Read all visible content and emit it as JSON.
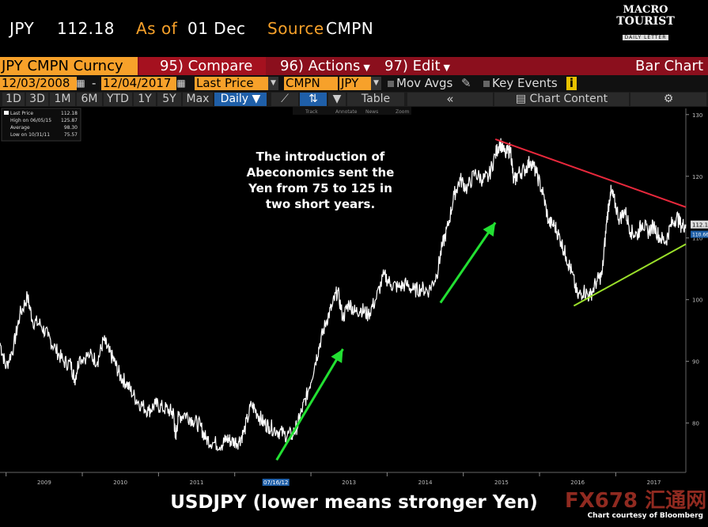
{
  "header": {
    "ticker": "JPY",
    "price": "112.18",
    "as_of_label": "As of",
    "as_of_date": "01 Dec",
    "source_label": "Source",
    "source_value": "CMPN"
  },
  "logo": {
    "line1": "MACRO",
    "line2": "TOURIST",
    "line3": "DAILY LETTER"
  },
  "menu": {
    "security": "JPY CMPN Curncy",
    "compare": "95) Compare",
    "actions": "96) Actions",
    "edit": "97) Edit",
    "bar_chart": "Bar Chart"
  },
  "inputs": {
    "start_date": "12/03/2008",
    "dash": "-",
    "end_date": "12/04/2017",
    "field": "Last Price",
    "source": "CMPN",
    "currency": "JPY",
    "mov_avgs": "Mov Avgs",
    "key_events": "Key Events",
    "info": "i"
  },
  "toolbar": {
    "periods": [
      "1D",
      "3D",
      "1M",
      "6M",
      "YTD",
      "1Y",
      "5Y",
      "Max"
    ],
    "frequency": "Daily ▼",
    "table": "Table",
    "chart_content": "Chart Content",
    "back": "«",
    "gear": "⚙",
    "tools": [
      "Track",
      "Annotate",
      "News",
      "Zoom"
    ]
  },
  "legend": {
    "rows": [
      {
        "label": "Last Price",
        "value": "112.18"
      },
      {
        "label": "High on 06/05/15",
        "value": "125.87"
      },
      {
        "label": "Average",
        "value": "98.30"
      },
      {
        "label": "Low on 10/31/11",
        "value": "75.57"
      }
    ]
  },
  "annotation": {
    "lines": [
      "The introduction of",
      "Abeconomics sent the",
      "Yen from 75 to 125 in",
      "two short years."
    ]
  },
  "footer": {
    "title": "USDJPY (lower means stronger Yen)",
    "credit": "Chart courtesy of Bloomberg",
    "watermark": "FX678 汇通网"
  },
  "colors": {
    "accent": "#f7a12a",
    "menubar": "#8b0f1d",
    "resistance": "#e8283c",
    "support": "#9adf2a",
    "arrows": "#22e032",
    "series": "#ffffff"
  },
  "chart_data": {
    "type": "line",
    "xlim": [
      2008.92,
      2017.92
    ],
    "ylim": [
      72,
      131
    ],
    "yticks": [
      80,
      90,
      100,
      110,
      120,
      130
    ],
    "xticks": [
      "2009",
      "2010",
      "2011",
      "2012",
      "2013",
      "2014",
      "2015",
      "2016",
      "2017"
    ],
    "xtick_positions": [
      2009.5,
      2010.5,
      2011.5,
      2012.5,
      2013.5,
      2014.5,
      2015.5,
      2016.5,
      2017.5
    ],
    "highlighted_date": "07/16/12",
    "highlighted_date_pos": 2012.54,
    "last_price_label": "112.18",
    "second_price_label": "110.66",
    "series": [
      {
        "name": "Last Price",
        "points": [
          [
            2008.92,
            93.0
          ],
          [
            2009.0,
            89.0
          ],
          [
            2009.1,
            92.5
          ],
          [
            2009.18,
            97.5
          ],
          [
            2009.28,
            100.5
          ],
          [
            2009.35,
            96.5
          ],
          [
            2009.45,
            96.0
          ],
          [
            2009.55,
            94.0
          ],
          [
            2009.65,
            92.0
          ],
          [
            2009.75,
            90.0
          ],
          [
            2009.85,
            89.5
          ],
          [
            2009.9,
            87.0
          ],
          [
            2009.96,
            90.5
          ],
          [
            2010.1,
            91.0
          ],
          [
            2010.2,
            90.0
          ],
          [
            2010.28,
            93.5
          ],
          [
            2010.35,
            91.5
          ],
          [
            2010.42,
            90.0
          ],
          [
            2010.5,
            87.5
          ],
          [
            2010.58,
            86.5
          ],
          [
            2010.67,
            84.5
          ],
          [
            2010.77,
            83.0
          ],
          [
            2010.87,
            82.0
          ],
          [
            2010.96,
            83.0
          ],
          [
            2011.05,
            82.5
          ],
          [
            2011.15,
            82.0
          ],
          [
            2011.2,
            81.5
          ],
          [
            2011.22,
            77.5
          ],
          [
            2011.26,
            81.0
          ],
          [
            2011.35,
            81.5
          ],
          [
            2011.45,
            80.5
          ],
          [
            2011.55,
            79.5
          ],
          [
            2011.62,
            77.5
          ],
          [
            2011.72,
            76.8
          ],
          [
            2011.83,
            76.5
          ],
          [
            2011.9,
            77.5
          ],
          [
            2011.96,
            77.0
          ],
          [
            2012.05,
            77.0
          ],
          [
            2012.12,
            78.5
          ],
          [
            2012.22,
            83.0
          ],
          [
            2012.3,
            81.5
          ],
          [
            2012.38,
            80.0
          ],
          [
            2012.45,
            79.5
          ],
          [
            2012.55,
            78.8
          ],
          [
            2012.65,
            78.2
          ],
          [
            2012.75,
            78.0
          ],
          [
            2012.82,
            79.5
          ],
          [
            2012.88,
            82.0
          ],
          [
            2012.96,
            85.0
          ],
          [
            2013.05,
            89.5
          ],
          [
            2013.12,
            93.0
          ],
          [
            2013.2,
            96.5
          ],
          [
            2013.28,
            99.0
          ],
          [
            2013.35,
            101.5
          ],
          [
            2013.42,
            97.0
          ],
          [
            2013.5,
            99.5
          ],
          [
            2013.58,
            98.0
          ],
          [
            2013.66,
            98.5
          ],
          [
            2013.75,
            97.5
          ],
          [
            2013.85,
            100.0
          ],
          [
            2013.96,
            104.0
          ],
          [
            2014.05,
            102.5
          ],
          [
            2014.15,
            102.0
          ],
          [
            2014.25,
            102.5
          ],
          [
            2014.35,
            101.5
          ],
          [
            2014.45,
            101.8
          ],
          [
            2014.55,
            101.5
          ],
          [
            2014.65,
            104.0
          ],
          [
            2014.72,
            108.5
          ],
          [
            2014.8,
            112.0
          ],
          [
            2014.88,
            117.0
          ],
          [
            2014.96,
            119.5
          ],
          [
            2015.05,
            118.0
          ],
          [
            2015.15,
            120.5
          ],
          [
            2015.25,
            119.5
          ],
          [
            2015.33,
            119.8
          ],
          [
            2015.42,
            123.5
          ],
          [
            2015.48,
            125.5
          ],
          [
            2015.55,
            123.5
          ],
          [
            2015.62,
            124.5
          ],
          [
            2015.66,
            119.0
          ],
          [
            2015.72,
            120.5
          ],
          [
            2015.8,
            121.0
          ],
          [
            2015.88,
            122.5
          ],
          [
            2015.96,
            120.5
          ],
          [
            2016.05,
            117.0
          ],
          [
            2016.12,
            112.5
          ],
          [
            2016.2,
            112.0
          ],
          [
            2016.28,
            109.5
          ],
          [
            2016.35,
            107.0
          ],
          [
            2016.42,
            104.5
          ],
          [
            2016.5,
            100.5
          ],
          [
            2016.58,
            101.5
          ],
          [
            2016.66,
            100.5
          ],
          [
            2016.75,
            103.0
          ],
          [
            2016.82,
            104.0
          ],
          [
            2016.88,
            112.5
          ],
          [
            2016.93,
            117.5
          ],
          [
            2016.97,
            116.5
          ],
          [
            2017.05,
            113.0
          ],
          [
            2017.12,
            114.5
          ],
          [
            2017.2,
            111.0
          ],
          [
            2017.28,
            110.5
          ],
          [
            2017.35,
            112.5
          ],
          [
            2017.42,
            111.0
          ],
          [
            2017.5,
            112.0
          ],
          [
            2017.58,
            110.0
          ],
          [
            2017.66,
            109.5
          ],
          [
            2017.72,
            112.0
          ],
          [
            2017.8,
            113.5
          ],
          [
            2017.86,
            112.0
          ],
          [
            2017.92,
            112.18
          ]
        ]
      }
    ],
    "trendlines": [
      {
        "name": "resistance",
        "from": [
          2015.42,
          126.0
        ],
        "to": [
          2017.92,
          115.0
        ]
      },
      {
        "name": "support",
        "from": [
          2016.45,
          99.0
        ],
        "to": [
          2017.92,
          109.0
        ]
      }
    ],
    "arrows": [
      {
        "from": [
          2012.55,
          74.0
        ],
        "to": [
          2013.42,
          92.0
        ]
      },
      {
        "from": [
          2014.7,
          99.5
        ],
        "to": [
          2015.42,
          112.5
        ]
      }
    ]
  }
}
